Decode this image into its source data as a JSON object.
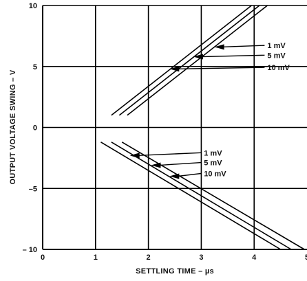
{
  "chart_data": {
    "type": "line",
    "xlabel": "SETTLING TIME – µs",
    "ylabel": "OUTPUT VOLTAGE SWING – V",
    "xlim": [
      0,
      5
    ],
    "ylim": [
      -10,
      10
    ],
    "x_ticks": [
      "0",
      "1",
      "2",
      "3",
      "4",
      "5"
    ],
    "y_ticks": [
      "10",
      "5",
      "0",
      "–5",
      "– 10"
    ],
    "grid": true,
    "legend": "none",
    "series": [
      {
        "name": "1 mV",
        "group": "positive",
        "points": [
          [
            1.3,
            1.0
          ],
          [
            3.95,
            10.0
          ]
        ]
      },
      {
        "name": "5 mV",
        "group": "positive",
        "points": [
          [
            1.45,
            1.0
          ],
          [
            4.1,
            10.0
          ]
        ]
      },
      {
        "name": "10 mV",
        "group": "positive",
        "points": [
          [
            1.6,
            1.0
          ],
          [
            4.25,
            10.0
          ]
        ]
      },
      {
        "name": "1 mV",
        "group": "negative",
        "points": [
          [
            1.1,
            -1.2
          ],
          [
            4.5,
            -10.0
          ]
        ]
      },
      {
        "name": "5 mV",
        "group": "negative",
        "points": [
          [
            1.3,
            -1.2
          ],
          [
            4.7,
            -10.0
          ]
        ]
      },
      {
        "name": "10 mV",
        "group": "negative",
        "points": [
          [
            1.5,
            -1.2
          ],
          [
            4.95,
            -10.0
          ]
        ]
      }
    ],
    "annotations": [
      {
        "text": "1 mV",
        "label_at": [
          4.25,
          6.5
        ],
        "arrow_to": [
          3.25,
          6.6
        ]
      },
      {
        "text": "5 mV",
        "label_at": [
          4.25,
          5.7
        ],
        "arrow_to": [
          2.85,
          5.8
        ]
      },
      {
        "text": "10 mV",
        "label_at": [
          4.25,
          4.7
        ],
        "arrow_to": [
          2.4,
          4.8
        ]
      },
      {
        "text": "1 mV",
        "label_at": [
          3.05,
          -2.3
        ],
        "arrow_to": [
          1.65,
          -2.3
        ]
      },
      {
        "text": "5 mV",
        "label_at": [
          3.05,
          -3.1
        ],
        "arrow_to": [
          2.05,
          -3.1
        ]
      },
      {
        "text": "10 mV",
        "label_at": [
          3.05,
          -4.0
        ],
        "arrow_to": [
          2.4,
          -4.0
        ]
      }
    ]
  }
}
